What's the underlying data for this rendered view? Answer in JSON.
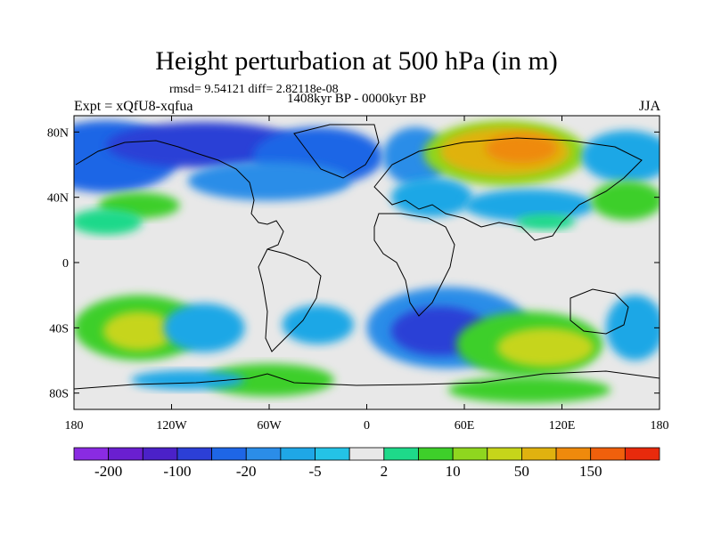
{
  "title": "Height perturbation at 500 hPa (in m)",
  "stats": "rmsd= 9.54121 diff= 2.82118e-08",
  "period": "1408kyr BP - 0000kyr BP",
  "experiment": "Expt = xQfU8-xqfua",
  "season": "JJA",
  "map": {
    "lon_range": [
      -180,
      180
    ],
    "lat_range": [
      -90,
      90
    ],
    "x_ticks": [
      {
        "lon": -180,
        "label": "180"
      },
      {
        "lon": -120,
        "label": "120W"
      },
      {
        "lon": -60,
        "label": "60W"
      },
      {
        "lon": 0,
        "label": "0"
      },
      {
        "lon": 60,
        "label": "60E"
      },
      {
        "lon": 120,
        "label": "120E"
      },
      {
        "lon": 180,
        "label": "180"
      }
    ],
    "y_ticks": [
      {
        "lat": 80,
        "label": "80N"
      },
      {
        "lat": 40,
        "label": "40N"
      },
      {
        "lat": 0,
        "label": "0"
      },
      {
        "lat": -40,
        "label": "40S"
      },
      {
        "lat": -80,
        "label": "80S"
      }
    ]
  },
  "colorbar": {
    "colors": [
      "#8a2be2",
      "#6a1fd0",
      "#4b21c8",
      "#2c3fd6",
      "#1e66e6",
      "#2b8de8",
      "#1fa7e6",
      "#24c3e6",
      "#e8e8e8",
      "#1ed98a",
      "#3ecf2a",
      "#8fd61f",
      "#c6d51a",
      "#e0b20f",
      "#ef8a0c",
      "#f0600c",
      "#e82a0c"
    ],
    "labels": [
      {
        "boundary": 1,
        "text": "-200"
      },
      {
        "boundary": 3,
        "text": "-100"
      },
      {
        "boundary": 5,
        "text": "-20"
      },
      {
        "boundary": 7,
        "text": "-5"
      },
      {
        "boundary": 9,
        "text": "2"
      },
      {
        "boundary": 11,
        "text": "10"
      },
      {
        "boundary": 13,
        "text": "50"
      },
      {
        "boundary": 15,
        "text": "150"
      }
    ]
  },
  "field_blobs": [
    {
      "lon": -160,
      "lat": 65,
      "rx": 45,
      "ry": 22,
      "color": "#1e66e6"
    },
    {
      "lon": -100,
      "lat": 72,
      "rx": 60,
      "ry": 14,
      "color": "#2c3fd6"
    },
    {
      "lon": -30,
      "lat": 65,
      "rx": 40,
      "ry": 18,
      "color": "#1e66e6"
    },
    {
      "lon": -60,
      "lat": 50,
      "rx": 50,
      "ry": 12,
      "color": "#2b8de8"
    },
    {
      "lon": 30,
      "lat": 65,
      "rx": 20,
      "ry": 18,
      "color": "#2b8de8"
    },
    {
      "lon": 85,
      "lat": 67,
      "rx": 50,
      "ry": 20,
      "color": "#8fd61f"
    },
    {
      "lon": 85,
      "lat": 68,
      "rx": 40,
      "ry": 15,
      "color": "#e0b20f"
    },
    {
      "lon": 95,
      "lat": 70,
      "rx": 22,
      "ry": 9,
      "color": "#ef8a0c"
    },
    {
      "lon": 160,
      "lat": 65,
      "rx": 28,
      "ry": 16,
      "color": "#1fa7e6"
    },
    {
      "lon": -140,
      "lat": 35,
      "rx": 25,
      "ry": 8,
      "color": "#3ecf2a"
    },
    {
      "lon": 40,
      "lat": 40,
      "rx": 25,
      "ry": 12,
      "color": "#1fa7e6"
    },
    {
      "lon": 100,
      "lat": 35,
      "rx": 40,
      "ry": 10,
      "color": "#1fa7e6"
    },
    {
      "lon": 160,
      "lat": 38,
      "rx": 22,
      "ry": 12,
      "color": "#3ecf2a"
    },
    {
      "lon": -160,
      "lat": 25,
      "rx": 22,
      "ry": 8,
      "color": "#1ed98a"
    },
    {
      "lon": 110,
      "lat": 25,
      "rx": 18,
      "ry": 5,
      "color": "#1ed98a"
    },
    {
      "lon": -140,
      "lat": -40,
      "rx": 40,
      "ry": 20,
      "color": "#3ecf2a"
    },
    {
      "lon": -140,
      "lat": -42,
      "rx": 22,
      "ry": 12,
      "color": "#c6d51a"
    },
    {
      "lon": -100,
      "lat": -40,
      "rx": 25,
      "ry": 15,
      "color": "#1fa7e6"
    },
    {
      "lon": -30,
      "lat": -38,
      "rx": 22,
      "ry": 12,
      "color": "#1fa7e6"
    },
    {
      "lon": 50,
      "lat": -40,
      "rx": 50,
      "ry": 25,
      "color": "#2b8de8"
    },
    {
      "lon": 45,
      "lat": -42,
      "rx": 30,
      "ry": 15,
      "color": "#2c3fd6"
    },
    {
      "lon": 100,
      "lat": -50,
      "rx": 45,
      "ry": 20,
      "color": "#3ecf2a"
    },
    {
      "lon": 110,
      "lat": -52,
      "rx": 30,
      "ry": 12,
      "color": "#c6d51a"
    },
    {
      "lon": 165,
      "lat": -40,
      "rx": 18,
      "ry": 20,
      "color": "#1fa7e6"
    },
    {
      "lon": -60,
      "lat": -72,
      "rx": 40,
      "ry": 10,
      "color": "#3ecf2a"
    },
    {
      "lon": 100,
      "lat": -78,
      "rx": 50,
      "ry": 8,
      "color": "#3ecf2a"
    },
    {
      "lon": -110,
      "lat": -72,
      "rx": 35,
      "ry": 6,
      "color": "#1fa7e6"
    }
  ]
}
